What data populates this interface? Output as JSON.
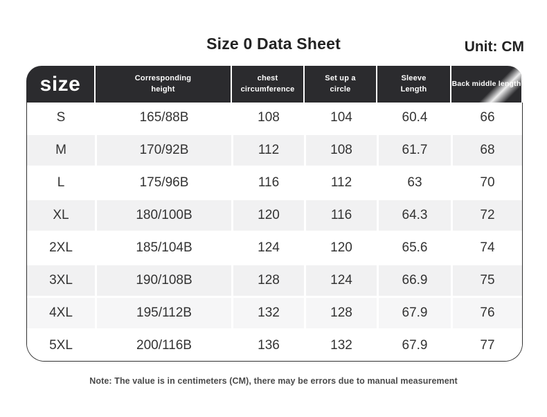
{
  "page": {
    "title": "Size 0 Data Sheet",
    "unit_label": "Unit: CM",
    "note": "Note: The value is in centimeters (CM), there may be errors due to manual measurement"
  },
  "colors": {
    "header_bg": "#2b2b2e",
    "header_text": "#ffffff",
    "body_text": "#333333",
    "table_border": "#303030",
    "row_plain": "#ffffff",
    "row_shaded": "#f1f1f2",
    "row_shaded_light": "#f6f6f7"
  },
  "table": {
    "columns": [
      {
        "label": "size"
      },
      {
        "label": "Corresponding\nheight"
      },
      {
        "label": "chest\ncircumference"
      },
      {
        "label": "Set up a\ncircle"
      },
      {
        "label": "Sleeve\nLength"
      },
      {
        "label": "Back middle length"
      }
    ],
    "rows": [
      {
        "cells": [
          "S",
          "165/88B",
          "108",
          "104",
          "60.4",
          "66"
        ],
        "bg": "#ffffff"
      },
      {
        "cells": [
          "M",
          "170/92B",
          "112",
          "108",
          "61.7",
          "68"
        ],
        "bg": "#f1f1f2"
      },
      {
        "cells": [
          "L",
          "175/96B",
          "116",
          "112",
          "63",
          "70"
        ],
        "bg": "#ffffff"
      },
      {
        "cells": [
          "XL",
          "180/100B",
          "120",
          "116",
          "64.3",
          "72"
        ],
        "bg": "#f1f1f2"
      },
      {
        "cells": [
          "2XL",
          "185/104B",
          "124",
          "120",
          "65.6",
          "74"
        ],
        "bg": "#ffffff"
      },
      {
        "cells": [
          "3XL",
          "190/108B",
          "128",
          "124",
          "66.9",
          "75"
        ],
        "bg": "#f1f1f2"
      },
      {
        "cells": [
          "4XL",
          "195/112B",
          "132",
          "128",
          "67.9",
          "76"
        ],
        "bg": "#f6f6f7"
      },
      {
        "cells": [
          "5XL",
          "200/116B",
          "136",
          "132",
          "67.9",
          "77"
        ],
        "bg": "#ffffff"
      }
    ]
  }
}
